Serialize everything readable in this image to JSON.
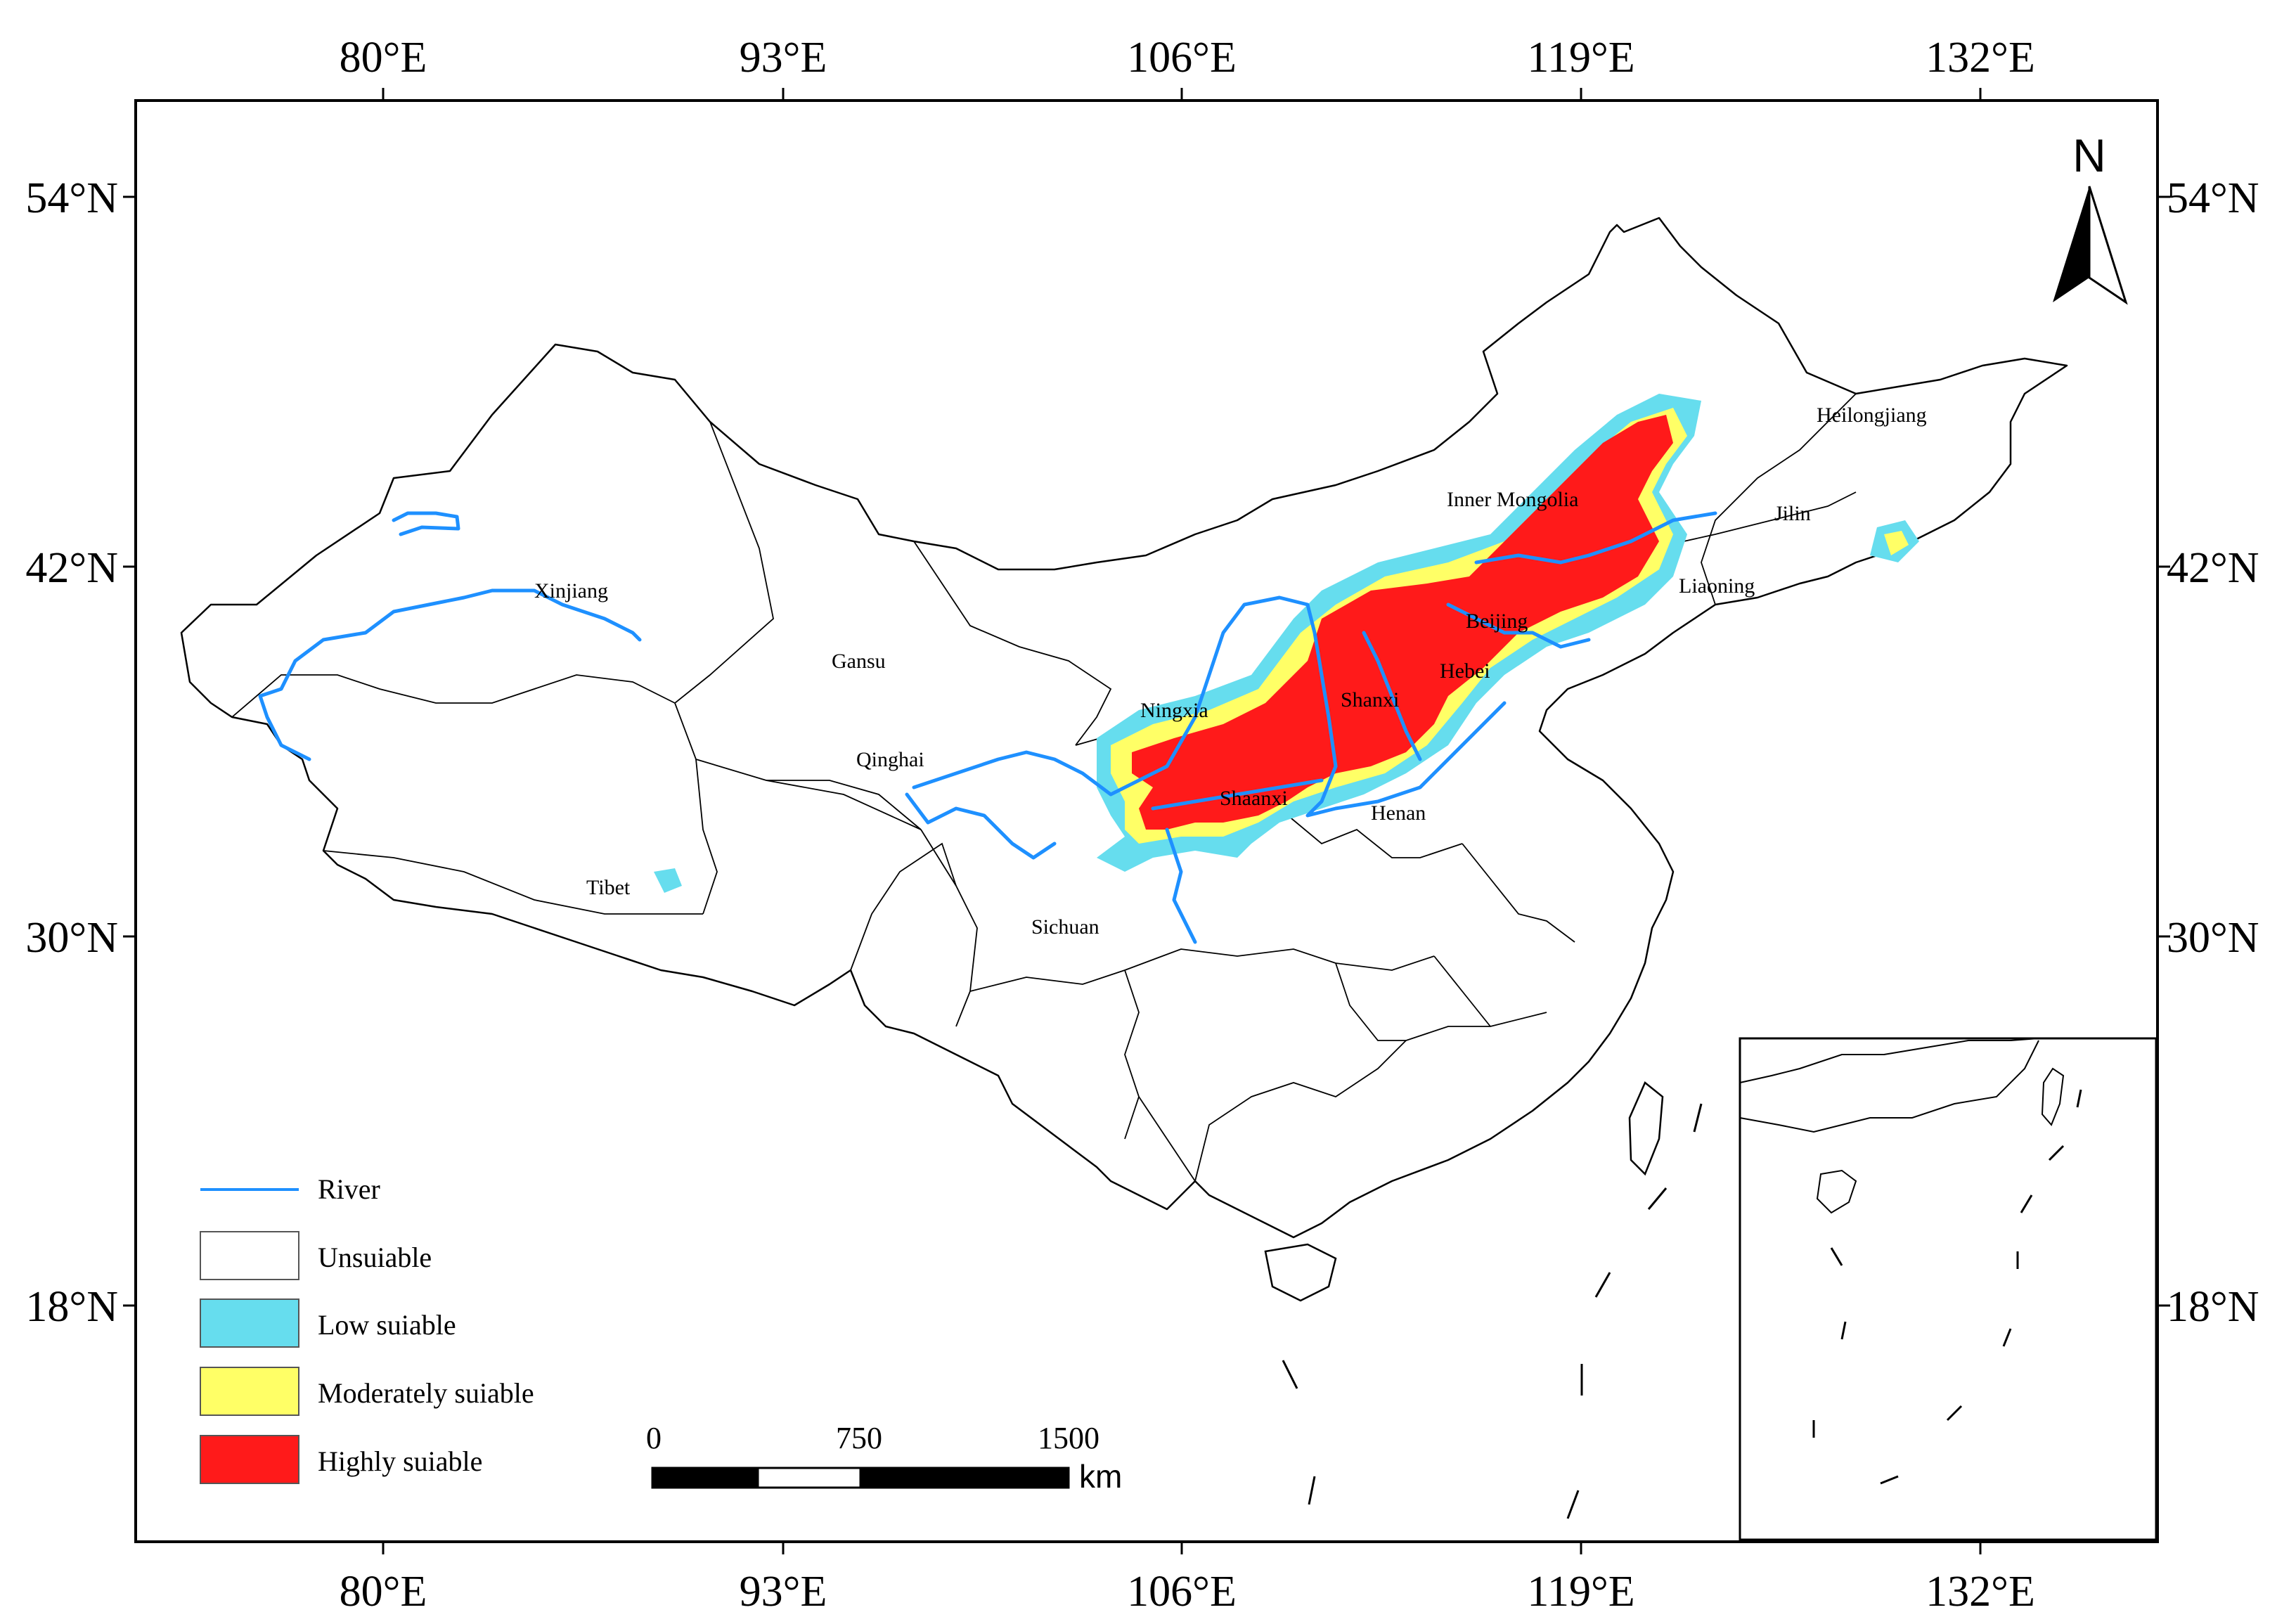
{
  "map": {
    "top_axis_labels": [
      "80°E",
      "93°E",
      "106°E",
      "119°E",
      "132°E"
    ],
    "bottom_axis_labels": [
      "80°E",
      "93°E",
      "106°E",
      "119°E",
      "132°E"
    ],
    "left_axis_labels": [
      "54°N",
      "42°N",
      "30°N",
      "18°N"
    ],
    "right_axis_labels": [
      "54°N",
      "42°N",
      "30°N",
      "18°N"
    ],
    "provinces": {
      "xinjiang": "Xinjiang",
      "gansu": "Gansu",
      "qinghai": "Qinghai",
      "tibet": "Tibet",
      "sichuan": "Sichuan",
      "ningxia": "Ningxia",
      "shaanxi": "Shaanxi",
      "shanxi": "Shanxi",
      "henan": "Henan",
      "hebei": "Hebei",
      "beijing": "Beijing",
      "inner_mongolia": "Inner Mongolia",
      "liaoning": "Liaoning",
      "jilin": "Jilin",
      "heilongjiang": "Heilongjiang"
    },
    "north_arrow": {
      "label": "N",
      "icon": "north-arrow-icon"
    },
    "scale_bar": {
      "ticks": [
        "0",
        "750",
        "1500"
      ],
      "unit": "km"
    },
    "legend": [
      {
        "label": "River",
        "type": "line",
        "color": "#1e90ff"
      },
      {
        "label": "Unsuiable",
        "type": "box",
        "color": "#ffffff"
      },
      {
        "label": "Low suiable",
        "type": "box",
        "color": "#66ddee"
      },
      {
        "label": "Moderately suiable",
        "type": "box",
        "color": "#ffff66"
      },
      {
        "label": "Highly suiable",
        "type": "box",
        "color": "#ff1a1a"
      }
    ],
    "colors": {
      "river": "#1e90ff",
      "low": "#66ddee",
      "moderate": "#ffff66",
      "high": "#ff1a1a",
      "border": "#000000"
    }
  }
}
